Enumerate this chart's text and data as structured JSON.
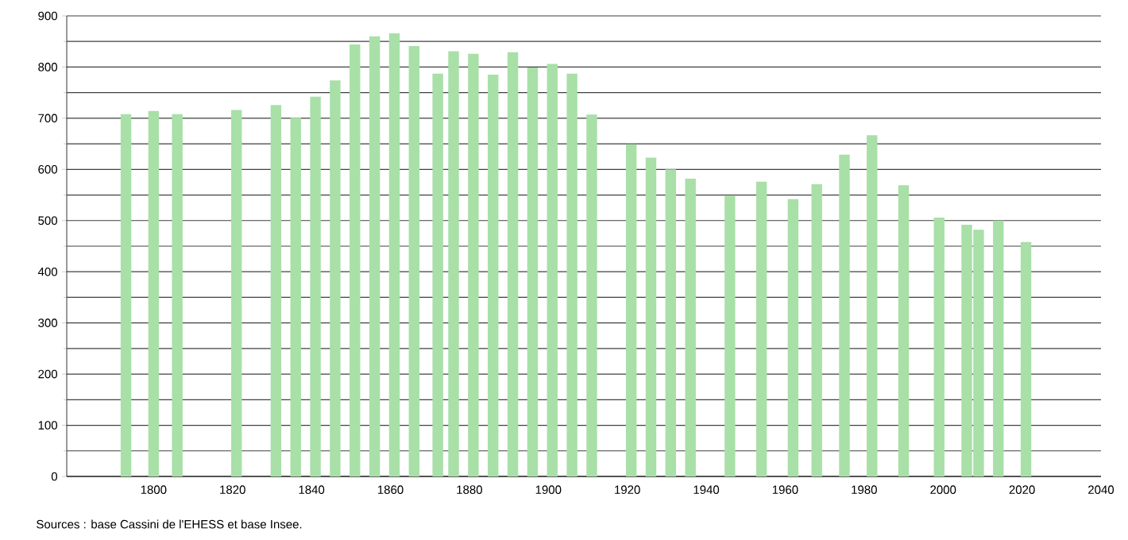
{
  "chart_data": {
    "type": "bar",
    "color": "#a8e0a8",
    "x": [
      1793,
      1800,
      1806,
      1821,
      1831,
      1836,
      1841,
      1846,
      1851,
      1856,
      1861,
      1866,
      1872,
      1876,
      1881,
      1886,
      1891,
      1896,
      1901,
      1906,
      1911,
      1921,
      1926,
      1931,
      1936,
      1946,
      1954,
      1962,
      1968,
      1975,
      1982,
      1990,
      1999,
      2006,
      2009,
      2014,
      2021
    ],
    "values": [
      708,
      714,
      708,
      716,
      726,
      701,
      742,
      774,
      844,
      860,
      866,
      841,
      787,
      831,
      826,
      785,
      829,
      799,
      806,
      787,
      707,
      649,
      623,
      600,
      582,
      549,
      576,
      542,
      571,
      629,
      667,
      569,
      506,
      492,
      482,
      500,
      458
    ],
    "xlim": [
      1778,
      2040
    ],
    "xticks": [
      1800,
      1820,
      1840,
      1860,
      1880,
      1900,
      1920,
      1940,
      1960,
      1980,
      2000,
      2020,
      2040
    ],
    "ylim": [
      0,
      900
    ],
    "yticks": [
      0,
      {
        "value": 50,
        "label": null
      },
      100,
      {
        "value": 150,
        "label": null
      },
      200,
      {
        "value": 250,
        "label": null
      },
      300,
      {
        "value": 350,
        "label": null
      },
      400,
      {
        "value": 450,
        "label": null
      },
      500,
      {
        "value": 550,
        "label": null
      },
      600,
      {
        "value": 650,
        "label": null
      },
      700,
      {
        "value": 750,
        "label": null
      },
      800,
      {
        "value": 850,
        "label": null
      },
      900
    ],
    "grid": "y",
    "annotations": [
      "Sources : base Cassini de l'EHESS et base Insee."
    ]
  }
}
